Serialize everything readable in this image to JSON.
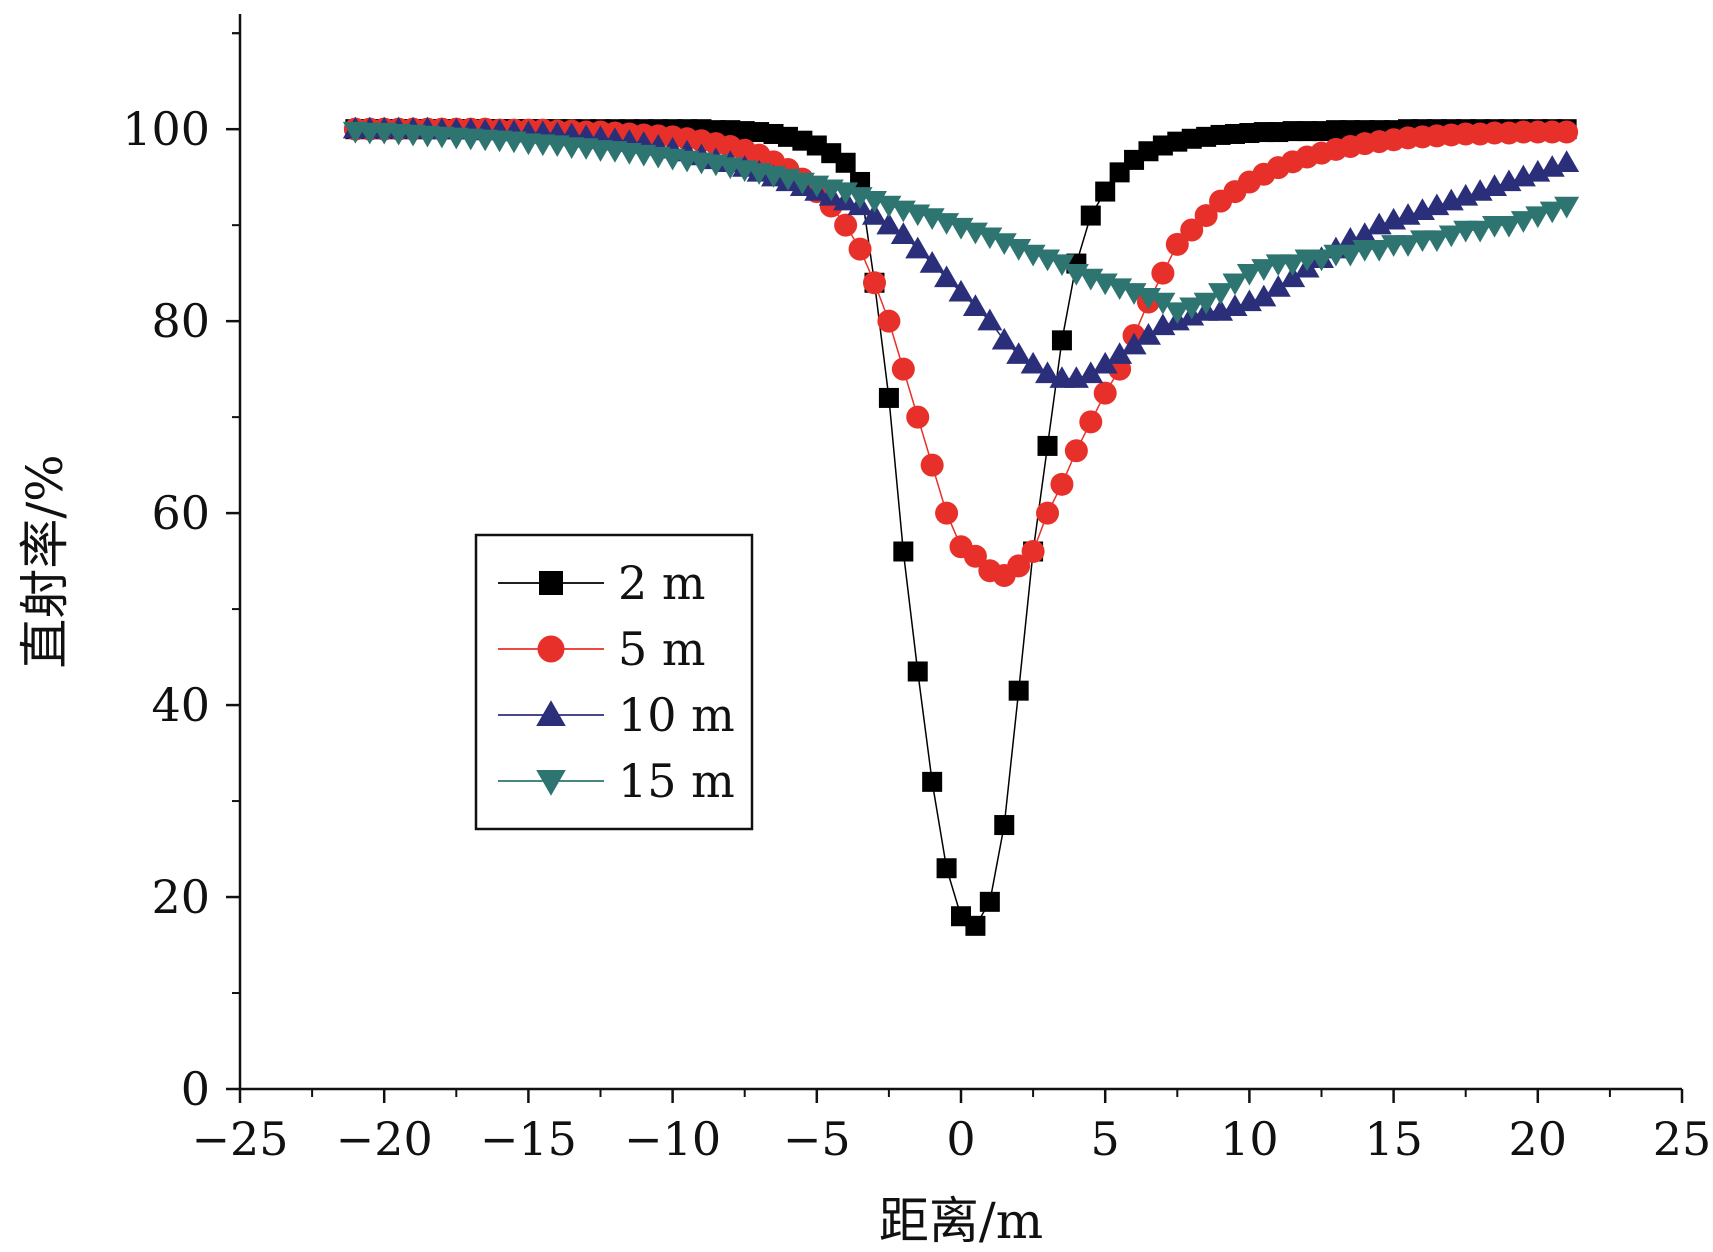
{
  "chart_data": {
    "type": "scatter",
    "title": "",
    "xlabel": "距离/m",
    "ylabel": "直射率/%",
    "xlim": [
      -25,
      25
    ],
    "ylim": [
      0,
      112
    ],
    "xticks": [
      -25,
      -20,
      -15,
      -10,
      -5,
      0,
      5,
      10,
      15,
      20,
      25
    ],
    "xtick_labels": [
      "−25",
      "−20",
      "−15",
      "−10",
      "−5",
      "0",
      "5",
      "10",
      "15",
      "20",
      "25"
    ],
    "yticks": [
      0,
      20,
      40,
      60,
      80,
      100
    ],
    "ytick_labels": [
      "0",
      "20",
      "40",
      "60",
      "80",
      "100"
    ],
    "grid": false,
    "legend_position": "center-left",
    "series": [
      {
        "name": "2 m",
        "marker": "square",
        "color": "#000000",
        "x": [
          -21,
          -20.5,
          -20,
          -19.5,
          -19,
          -18.5,
          -18,
          -17.5,
          -17,
          -16.5,
          -16,
          -15.5,
          -15,
          -14.5,
          -14,
          -13.5,
          -13,
          -12.5,
          -12,
          -11.5,
          -11,
          -10.5,
          -10,
          -9.5,
          -9,
          -8.5,
          -8,
          -7.5,
          -7,
          -6.5,
          -6,
          -5.5,
          -5,
          -4.5,
          -4,
          -3.5,
          -3,
          -2.5,
          -2,
          -1.5,
          -1,
          -0.5,
          0,
          0.5,
          1,
          1.5,
          2,
          2.5,
          3,
          3.5,
          4,
          4.5,
          5,
          5.5,
          6,
          6.5,
          7,
          7.5,
          8,
          8.5,
          9,
          9.5,
          10,
          10.5,
          11,
          11.5,
          12,
          12.5,
          13,
          13.5,
          14,
          14.5,
          15,
          15.5,
          16,
          16.5,
          17,
          17.5,
          18,
          18.5,
          19,
          19.5,
          20,
          20.5,
          21
        ],
        "y": [
          100,
          100,
          100,
          100,
          100,
          100,
          100,
          100,
          100,
          100,
          100,
          100,
          100,
          100,
          100,
          100,
          100,
          100,
          100,
          100,
          100,
          100,
          100,
          100,
          100,
          99.9,
          99.9,
          99.8,
          99.7,
          99.5,
          99.2,
          98.8,
          98.3,
          97.5,
          96.5,
          94.5,
          84,
          72,
          56,
          43.5,
          32,
          23,
          18,
          17,
          19.5,
          27.5,
          41.5,
          56,
          67,
          78,
          86,
          91,
          93.5,
          95.5,
          96.8,
          97.7,
          98.3,
          98.7,
          99,
          99.2,
          99.4,
          99.5,
          99.6,
          99.7,
          99.7,
          99.8,
          99.8,
          99.8,
          99.9,
          99.9,
          99.9,
          99.9,
          99.9,
          100,
          100,
          100,
          100,
          100,
          100,
          100,
          100,
          100,
          100,
          100,
          100
        ]
      },
      {
        "name": "5 m",
        "marker": "circle",
        "color": "#e8302a",
        "x": [
          -21,
          -20.5,
          -20,
          -19.5,
          -19,
          -18.5,
          -18,
          -17.5,
          -17,
          -16.5,
          -16,
          -15.5,
          -15,
          -14.5,
          -14,
          -13.5,
          -13,
          -12.5,
          -12,
          -11.5,
          -11,
          -10.5,
          -10,
          -9.5,
          -9,
          -8.5,
          -8,
          -7.5,
          -7,
          -6.5,
          -6,
          -5.5,
          -5,
          -4.5,
          -4,
          -3.5,
          -3,
          -2.5,
          -2,
          -1.5,
          -1,
          -0.5,
          0,
          0.5,
          1,
          1.5,
          2,
          2.5,
          3,
          3.5,
          4,
          4.5,
          5,
          5.5,
          6,
          6.5,
          7,
          7.5,
          8,
          8.5,
          9,
          9.5,
          10,
          10.5,
          11,
          11.5,
          12,
          12.5,
          13,
          13.5,
          14,
          14.5,
          15,
          15.5,
          16,
          16.5,
          17,
          17.5,
          18,
          18.5,
          19,
          19.5,
          20,
          20.5,
          21
        ],
        "y": [
          100,
          100,
          100,
          100,
          100,
          100,
          100,
          100,
          100,
          100,
          99.9,
          99.9,
          99.9,
          99.9,
          99.8,
          99.8,
          99.7,
          99.7,
          99.6,
          99.5,
          99.4,
          99.3,
          99.2,
          99,
          98.8,
          98.5,
          98.2,
          97.8,
          97.3,
          96.6,
          95.8,
          94.8,
          93.5,
          92,
          90,
          87.5,
          84,
          80,
          75,
          70,
          65,
          60,
          56.5,
          55.5,
          54,
          53.5,
          54.5,
          56,
          60,
          63,
          66.5,
          69.5,
          72.5,
          75,
          78.5,
          82,
          85,
          88,
          89.5,
          91,
          92.5,
          93.5,
          94.5,
          95.3,
          96,
          96.6,
          97.1,
          97.5,
          97.9,
          98.2,
          98.5,
          98.7,
          98.9,
          99.1,
          99.2,
          99.3,
          99.4,
          99.5,
          99.5,
          99.6,
          99.6,
          99.7,
          99.7,
          99.7,
          99.7
        ]
      },
      {
        "name": "10 m",
        "marker": "triangle-up",
        "color": "#2b2f7a",
        "x": [
          -21,
          -20.5,
          -20,
          -19.5,
          -19,
          -18.5,
          -18,
          -17.5,
          -17,
          -16.5,
          -16,
          -15.5,
          -15,
          -14.5,
          -14,
          -13.5,
          -13,
          -12.5,
          -12,
          -11.5,
          -11,
          -10.5,
          -10,
          -9.5,
          -9,
          -8.5,
          -8,
          -7.5,
          -7,
          -6.5,
          -6,
          -5.5,
          -5,
          -4.5,
          -4,
          -3.5,
          -3,
          -2.5,
          -2,
          -1.5,
          -1,
          -0.5,
          0,
          0.5,
          1,
          1.5,
          2,
          2.5,
          3,
          3.5,
          4,
          4.5,
          5,
          5.5,
          6,
          6.5,
          7,
          7.5,
          8,
          8.5,
          9,
          9.5,
          10,
          10.5,
          11,
          11.5,
          12,
          12.5,
          13,
          13.5,
          14,
          14.5,
          15,
          15.5,
          16,
          16.5,
          17,
          17.5,
          18,
          18.5,
          19,
          19.5,
          20,
          20.5,
          21
        ],
        "y": [
          100,
          100,
          100,
          100,
          100,
          100,
          99.9,
          99.9,
          99.9,
          99.8,
          99.8,
          99.7,
          99.6,
          99.6,
          99.5,
          99.4,
          99.2,
          99.1,
          98.9,
          98.7,
          98.5,
          98.2,
          97.9,
          97.6,
          97.2,
          96.8,
          96.5,
          96,
          95.5,
          95,
          94.5,
          94,
          93.5,
          93,
          92.5,
          92,
          91,
          90,
          89,
          87.5,
          86,
          84.5,
          83,
          81.5,
          80,
          78,
          76.5,
          75.5,
          74.5,
          74,
          74,
          74.5,
          75.5,
          76.5,
          77.5,
          78.5,
          79.5,
          80,
          80.5,
          81,
          81,
          81.5,
          82,
          82.5,
          83.5,
          84.5,
          85.5,
          86.5,
          87.5,
          88.5,
          89,
          90,
          90.5,
          91,
          91.5,
          92,
          92.5,
          93,
          93.5,
          94,
          94.5,
          95,
          95.5,
          96,
          96.5
        ]
      },
      {
        "name": "15 m",
        "marker": "triangle-down",
        "color": "#2e7571",
        "x": [
          -21,
          -20.5,
          -20,
          -19.5,
          -19,
          -18.5,
          -18,
          -17.5,
          -17,
          -16.5,
          -16,
          -15.5,
          -15,
          -14.5,
          -14,
          -13.5,
          -13,
          -12.5,
          -12,
          -11.5,
          -11,
          -10.5,
          -10,
          -9.5,
          -9,
          -8.5,
          -8,
          -7.5,
          -7,
          -6.5,
          -6,
          -5.5,
          -5,
          -4.5,
          -4,
          -3.5,
          -3,
          -2.5,
          -2,
          -1.5,
          -1,
          -0.5,
          0,
          0.5,
          1,
          1.5,
          2,
          2.5,
          3,
          3.5,
          4,
          4.5,
          5,
          5.5,
          6,
          6.5,
          7,
          7.5,
          8,
          8.5,
          9,
          9.5,
          10,
          10.5,
          11,
          11.5,
          12,
          12.5,
          13,
          13.5,
          14,
          14.5,
          15,
          15.5,
          16,
          16.5,
          17,
          17.5,
          18,
          18.5,
          19,
          19.5,
          20,
          20.5,
          21
        ],
        "y": [
          99.8,
          99.7,
          99.7,
          99.6,
          99.5,
          99.4,
          99.3,
          99.2,
          99.1,
          99,
          98.9,
          98.8,
          98.6,
          98.5,
          98.4,
          98.2,
          98.1,
          97.9,
          97.8,
          97.6,
          97.4,
          97.2,
          97,
          96.8,
          96.6,
          96.4,
          96.1,
          95.8,
          95.5,
          95.2,
          94.9,
          94.5,
          94.2,
          93.8,
          93.5,
          93,
          92.6,
          92.1,
          91.6,
          91.2,
          90.8,
          90.3,
          89.8,
          89.3,
          88.8,
          88.2,
          87.6,
          87,
          86.5,
          86,
          85,
          84.5,
          84,
          83.5,
          83,
          82.5,
          82,
          81,
          81.5,
          82,
          83,
          84,
          85,
          85.5,
          86,
          86,
          86.5,
          86.5,
          87,
          87,
          87.5,
          87.5,
          88,
          88,
          88.5,
          88.5,
          89,
          89.5,
          89.5,
          90,
          90,
          90.5,
          91,
          91.5,
          92
        ]
      }
    ]
  }
}
